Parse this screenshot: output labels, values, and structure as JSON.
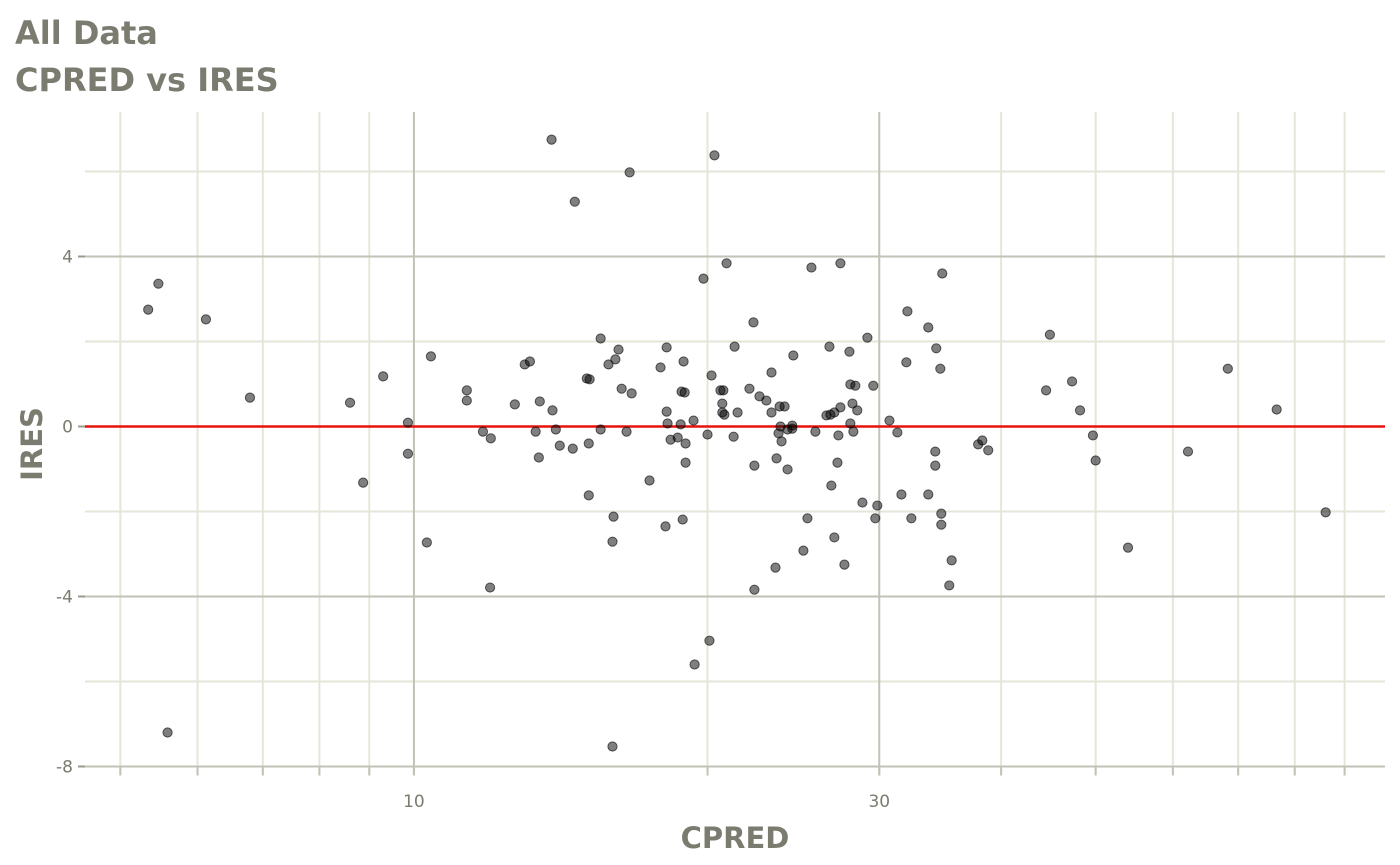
{
  "chart_data": {
    "type": "scatter",
    "title": "All Data",
    "subtitle": "CPRED vs IRES",
    "xlabel": "CPRED",
    "ylabel": "IRES",
    "x_scale": "log10",
    "xlim": [
      4.6,
      99
    ],
    "ylim": [
      -8.2,
      7.4
    ],
    "x_major_ticks": [
      10,
      30
    ],
    "x_tick_labels": [
      "10",
      "30"
    ],
    "x_minor_ticks": [
      5,
      6,
      7,
      8,
      9,
      20,
      40,
      50,
      60,
      70,
      80,
      90
    ],
    "y_major_ticks": [
      -8,
      -4,
      0,
      4
    ],
    "y_tick_labels": [
      "-8",
      "-4",
      "0",
      "4"
    ],
    "y_minor_ticks": [
      -6,
      -2,
      2,
      6
    ],
    "grid": true,
    "reference_line": {
      "y": 0,
      "color": "#e8120c"
    },
    "point_color": "#000000",
    "point_alpha": 0.5,
    "points": [
      [
        5.34,
        2.75
      ],
      [
        5.47,
        3.36
      ],
      [
        6.12,
        2.52
      ],
      [
        6.79,
        0.68
      ],
      [
        5.59,
        -7.2
      ],
      [
        8.6,
        0.56
      ],
      [
        8.87,
        -1.32
      ],
      [
        9.3,
        1.18
      ],
      [
        9.86,
        0.09
      ],
      [
        9.86,
        -0.64
      ],
      [
        10.31,
        -2.73
      ],
      [
        10.41,
        1.65
      ],
      [
        11.33,
        0.61
      ],
      [
        11.33,
        0.85
      ],
      [
        11.77,
        -0.12
      ],
      [
        11.99,
        -0.28
      ],
      [
        11.97,
        -3.79
      ],
      [
        12.69,
        0.52
      ],
      [
        12.99,
        1.46
      ],
      [
        13.15,
        1.53
      ],
      [
        13.33,
        -0.12
      ],
      [
        13.43,
        -0.73
      ],
      [
        13.46,
        0.59
      ],
      [
        13.84,
        6.75
      ],
      [
        13.87,
        0.38
      ],
      [
        13.98,
        -0.07
      ],
      [
        14.11,
        -0.45
      ],
      [
        14.55,
        -0.52
      ],
      [
        14.62,
        5.29
      ],
      [
        15.04,
        1.13
      ],
      [
        15.14,
        1.11
      ],
      [
        15.11,
        -0.4
      ],
      [
        15.11,
        -1.62
      ],
      [
        15.54,
        2.07
      ],
      [
        15.54,
        -0.07
      ],
      [
        15.83,
        1.46
      ],
      [
        16.02,
        -2.12
      ],
      [
        15.98,
        -2.71
      ],
      [
        15.98,
        -7.53
      ],
      [
        16.09,
        1.58
      ],
      [
        16.21,
        1.81
      ],
      [
        16.33,
        0.89
      ],
      [
        16.52,
        -0.12
      ],
      [
        16.64,
        5.98
      ],
      [
        16.72,
        0.78
      ],
      [
        17.44,
        -1.27
      ],
      [
        17.9,
        1.39
      ],
      [
        18.11,
        -2.35
      ],
      [
        18.16,
        1.86
      ],
      [
        18.16,
        0.35
      ],
      [
        18.2,
        0.07
      ],
      [
        18.33,
        -0.31
      ],
      [
        18.64,
        -0.26
      ],
      [
        18.77,
        0.05
      ],
      [
        18.86,
        -2.19
      ],
      [
        18.9,
        1.53
      ],
      [
        18.81,
        0.82
      ],
      [
        18.95,
        0.8
      ],
      [
        18.99,
        -0.4
      ],
      [
        18.99,
        -0.85
      ],
      [
        19.35,
        0.14
      ],
      [
        19.4,
        -5.6
      ],
      [
        19.81,
        3.48
      ],
      [
        20.0,
        -0.19
      ],
      [
        20.09,
        -5.04
      ],
      [
        20.19,
        1.2
      ],
      [
        20.33,
        6.38
      ],
      [
        20.62,
        0.85
      ],
      [
        20.71,
        0.33
      ],
      [
        20.71,
        0.54
      ],
      [
        20.76,
        0.85
      ],
      [
        20.81,
        0.28
      ],
      [
        20.92,
        3.84
      ],
      [
        21.27,
        -0.24
      ],
      [
        21.32,
        1.88
      ],
      [
        21.47,
        0.33
      ],
      [
        22.08,
        0.89
      ],
      [
        22.29,
        2.45
      ],
      [
        22.34,
        -0.92
      ],
      [
        22.34,
        -3.84
      ],
      [
        22.61,
        0.71
      ],
      [
        22.98,
        0.61
      ],
      [
        23.26,
        1.27
      ],
      [
        23.26,
        0.33
      ],
      [
        23.48,
        -3.32
      ],
      [
        23.54,
        -0.75
      ],
      [
        23.65,
        -0.16
      ],
      [
        23.71,
        0.47
      ],
      [
        23.76,
        0.0
      ],
      [
        23.82,
        -0.35
      ],
      [
        23.99,
        0.47
      ],
      [
        24.16,
        -1.01
      ],
      [
        24.16,
        -0.07
      ],
      [
        24.43,
        0.02
      ],
      [
        24.49,
        1.67
      ],
      [
        24.43,
        -0.05
      ],
      [
        25.08,
        -2.92
      ],
      [
        25.32,
        -2.16
      ],
      [
        25.56,
        3.74
      ],
      [
        25.8,
        -0.12
      ],
      [
        26.48,
        0.26
      ],
      [
        26.67,
        1.88
      ],
      [
        26.73,
        0.28
      ],
      [
        26.98,
        0.33
      ],
      [
        26.79,
        -1.39
      ],
      [
        26.98,
        -2.61
      ],
      [
        27.18,
        -0.85
      ],
      [
        27.24,
        -0.21
      ],
      [
        27.37,
        3.84
      ],
      [
        27.37,
        0.45
      ],
      [
        27.63,
        -3.25
      ],
      [
        27.96,
        1.76
      ],
      [
        28.02,
        0.99
      ],
      [
        28.02,
        0.07
      ],
      [
        28.16,
        0.54
      ],
      [
        28.22,
        -0.12
      ],
      [
        28.35,
        0.96
      ],
      [
        28.48,
        0.38
      ],
      [
        28.83,
        -1.79
      ],
      [
        29.17,
        2.09
      ],
      [
        29.58,
        0.96
      ],
      [
        29.72,
        -2.16
      ],
      [
        29.86,
        -1.86
      ],
      [
        30.73,
        0.14
      ],
      [
        31.31,
        -0.14
      ],
      [
        31.61,
        -1.6
      ],
      [
        31.98,
        1.51
      ],
      [
        32.06,
        2.71
      ],
      [
        32.36,
        -2.16
      ],
      [
        33.68,
        2.33
      ],
      [
        33.68,
        -1.6
      ],
      [
        34.24,
        -0.59
      ],
      [
        34.24,
        -0.92
      ],
      [
        34.32,
        1.84
      ],
      [
        34.65,
        1.36
      ],
      [
        34.73,
        -2.05
      ],
      [
        34.73,
        -2.31
      ],
      [
        34.81,
        3.6
      ],
      [
        35.39,
        -3.74
      ],
      [
        35.59,
        -3.15
      ],
      [
        37.89,
        -0.42
      ],
      [
        38.26,
        -0.33
      ],
      [
        38.8,
        -0.56
      ],
      [
        44.48,
        0.85
      ],
      [
        44.88,
        2.16
      ],
      [
        47.29,
        1.06
      ],
      [
        48.19,
        0.38
      ],
      [
        49.68,
        -0.21
      ],
      [
        50.0,
        -0.8
      ],
      [
        53.97,
        -2.85
      ],
      [
        62.18,
        -0.59
      ],
      [
        68.31,
        1.36
      ],
      [
        76.66,
        0.4
      ],
      [
        86.06,
        -2.02
      ]
    ]
  }
}
